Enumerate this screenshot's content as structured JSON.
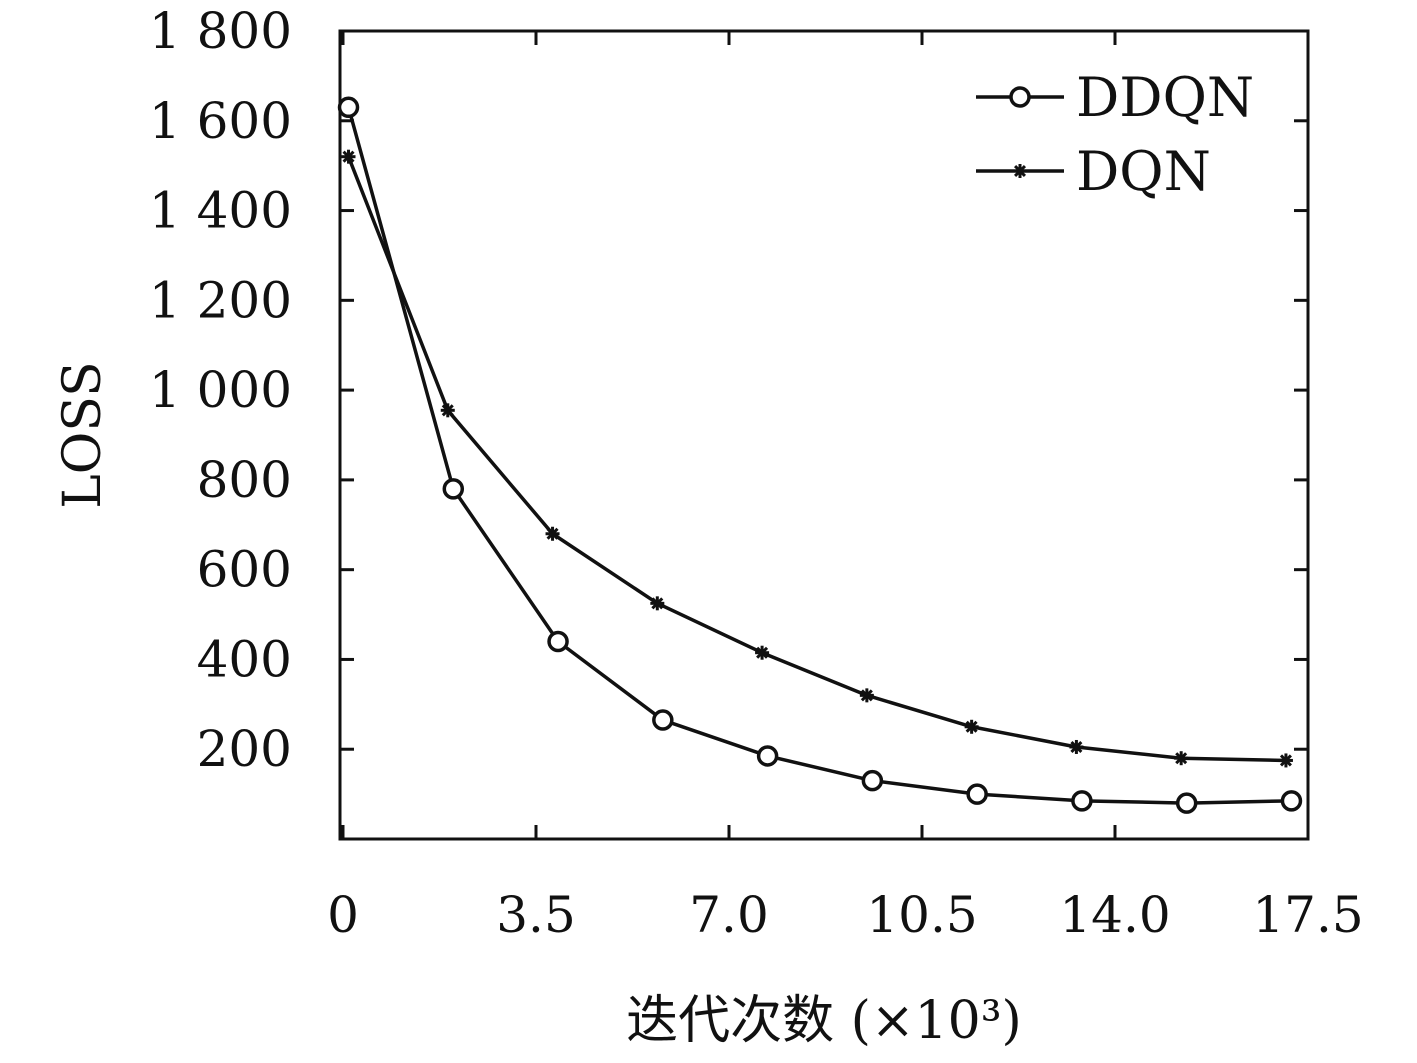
{
  "chart_data": {
    "type": "line",
    "title": "",
    "xlabel": "迭代次数 (×10³)",
    "ylabel": "LOSS",
    "xlim": [
      0,
      17.5
    ],
    "ylim": [
      0,
      1800
    ],
    "xticks": [
      {
        "value": 0,
        "label": "0"
      },
      {
        "value": 3.5,
        "label": "3.5"
      },
      {
        "value": 7.0,
        "label": "7.0"
      },
      {
        "value": 10.5,
        "label": "10.5"
      },
      {
        "value": 14.0,
        "label": "14.0"
      },
      {
        "value": 17.5,
        "label": "17.5"
      }
    ],
    "yticks": [
      {
        "value": 200,
        "label": "200"
      },
      {
        "value": 400,
        "label": "400"
      },
      {
        "value": 600,
        "label": "600"
      },
      {
        "value": 800,
        "label": "800"
      },
      {
        "value": 1000,
        "label": "1 000"
      },
      {
        "value": 1200,
        "label": "1 200"
      },
      {
        "value": 1400,
        "label": "1 400"
      },
      {
        "value": 1600,
        "label": "1 600"
      },
      {
        "value": 1800,
        "label": "1 800"
      }
    ],
    "grid": false,
    "legend_position": "top-right",
    "series": [
      {
        "name": "DDQN",
        "marker": "circle",
        "color": "#111111",
        "x": [
          0.1,
          2.0,
          3.9,
          5.8,
          7.7,
          9.6,
          11.5,
          13.4,
          15.3,
          17.2
        ],
        "y": [
          1630,
          780,
          440,
          265,
          185,
          130,
          100,
          85,
          80,
          85
        ]
      },
      {
        "name": "DQN",
        "marker": "asterisk",
        "color": "#111111",
        "x": [
          0.1,
          1.9,
          3.8,
          5.7,
          7.6,
          9.5,
          11.4,
          13.3,
          15.2,
          17.1
        ],
        "y": [
          1520,
          955,
          680,
          525,
          415,
          320,
          250,
          205,
          180,
          175
        ]
      }
    ]
  }
}
